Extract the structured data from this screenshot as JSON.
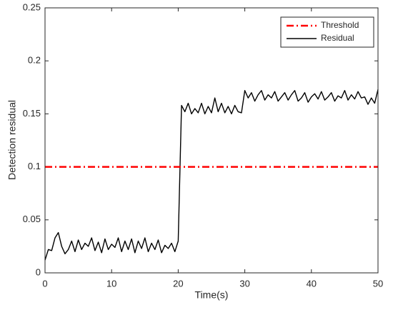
{
  "chart_data": {
    "type": "line",
    "xlabel": "Time(s)",
    "ylabel": "Detection residual",
    "xlim": [
      0,
      50
    ],
    "xticks": [
      0,
      10,
      20,
      30,
      40,
      50
    ],
    "ylim": [
      0,
      0.25
    ],
    "yticks": [
      0,
      0.05,
      0.1,
      0.15,
      0.2,
      0.25
    ],
    "grid": false,
    "legend": "upper right",
    "series": [
      {
        "name": "Threshold",
        "color": "#ff0000",
        "style": "dashdot",
        "x": [
          0,
          50
        ],
        "values": [
          0.1,
          0.1
        ]
      },
      {
        "name": "Residual",
        "color": "#000000",
        "style": "solid",
        "x": [
          0,
          0.5,
          1,
          1.5,
          2,
          2.5,
          3,
          3.5,
          4,
          4.5,
          5,
          5.5,
          6,
          6.5,
          7,
          7.5,
          8,
          8.5,
          9,
          9.5,
          10,
          10.5,
          11,
          11.5,
          12,
          12.5,
          13,
          13.5,
          14,
          14.5,
          15,
          15.5,
          16,
          16.5,
          17,
          17.5,
          18,
          18.5,
          19,
          19.5,
          20,
          20.5,
          21,
          21.5,
          22,
          22.5,
          23,
          23.5,
          24,
          24.5,
          25,
          25.5,
          26,
          26.5,
          27,
          27.5,
          28,
          28.5,
          29,
          29.5,
          30,
          30.5,
          31,
          31.5,
          32,
          32.5,
          33,
          33.5,
          34,
          34.5,
          35,
          35.5,
          36,
          36.5,
          37,
          37.5,
          38,
          38.5,
          39,
          39.5,
          40,
          40.5,
          41,
          41.5,
          42,
          42.5,
          43,
          43.5,
          44,
          44.5,
          45,
          45.5,
          46,
          46.5,
          47,
          47.5,
          48,
          48.5,
          49,
          49.5,
          50
        ],
        "values": [
          0.012,
          0.022,
          0.021,
          0.033,
          0.038,
          0.025,
          0.018,
          0.022,
          0.03,
          0.02,
          0.031,
          0.022,
          0.028,
          0.025,
          0.033,
          0.021,
          0.029,
          0.019,
          0.032,
          0.022,
          0.027,
          0.024,
          0.033,
          0.02,
          0.03,
          0.022,
          0.032,
          0.019,
          0.03,
          0.023,
          0.033,
          0.02,
          0.028,
          0.022,
          0.031,
          0.019,
          0.026,
          0.023,
          0.028,
          0.02,
          0.03,
          0.158,
          0.152,
          0.16,
          0.15,
          0.155,
          0.151,
          0.16,
          0.15,
          0.157,
          0.151,
          0.165,
          0.152,
          0.16,
          0.151,
          0.157,
          0.15,
          0.158,
          0.152,
          0.151,
          0.172,
          0.165,
          0.17,
          0.162,
          0.168,
          0.172,
          0.163,
          0.168,
          0.165,
          0.171,
          0.162,
          0.166,
          0.17,
          0.163,
          0.168,
          0.172,
          0.162,
          0.165,
          0.17,
          0.161,
          0.166,
          0.169,
          0.164,
          0.171,
          0.163,
          0.166,
          0.17,
          0.162,
          0.167,
          0.165,
          0.172,
          0.163,
          0.168,
          0.164,
          0.171,
          0.165,
          0.166,
          0.159,
          0.165,
          0.16,
          0.173
        ]
      }
    ]
  }
}
